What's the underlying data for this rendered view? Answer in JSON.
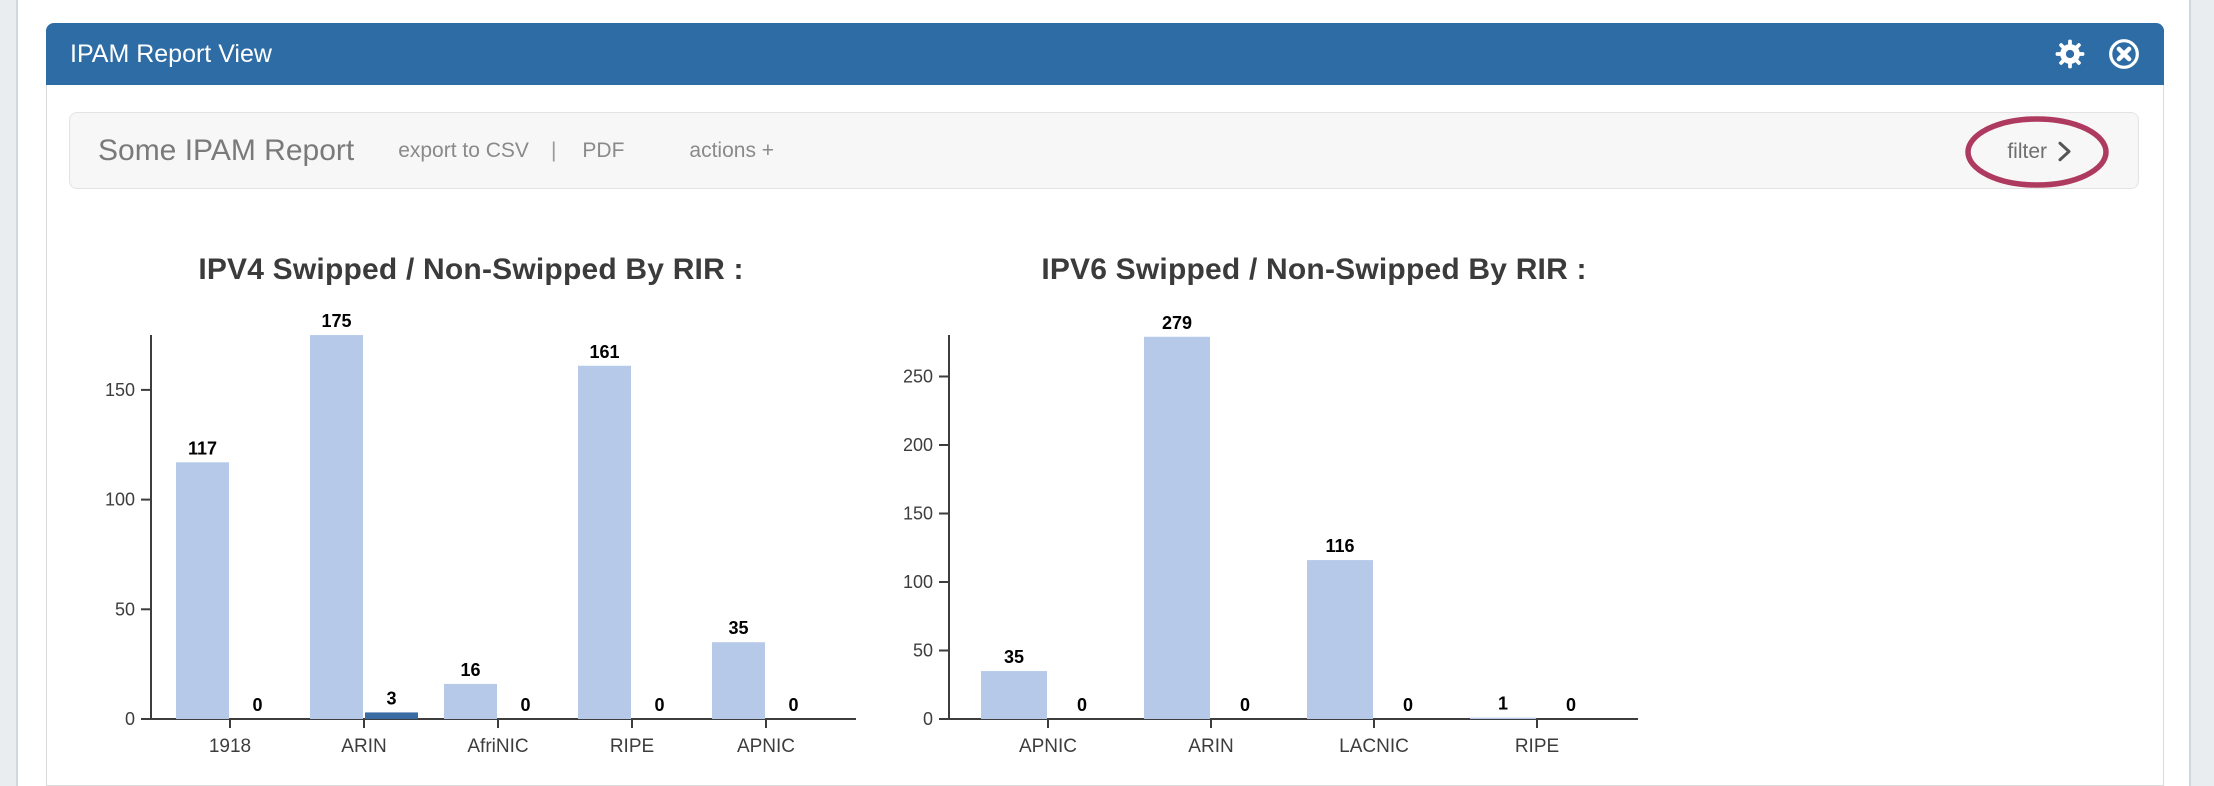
{
  "page": {
    "background": "#e9edf0",
    "accent": "#2e6ca5"
  },
  "panel": {
    "title": "IPAM Report View",
    "header_color": "#2e6ca5",
    "icons": [
      {
        "name": "settings-gear-icon"
      },
      {
        "name": "close-circle-x-icon"
      }
    ]
  },
  "toolbar": {
    "report_title": "Some IPAM Report",
    "export_csv_label": "export to CSV",
    "separator": "|",
    "pdf_label": "PDF",
    "actions_label": "actions +",
    "filter_label": "filter",
    "filter_chevron_icon": "chevron-right",
    "annotation_color": "#ae3a60"
  },
  "chart_data": [
    {
      "type": "bar",
      "title": "IPV4 Swipped / Non-Swipped By RIR :",
      "categories": [
        "1918",
        "ARIN",
        "AfriNIC",
        "RIPE",
        "APNIC"
      ],
      "series": [
        {
          "name": "swipped",
          "color": "#b7c9e8",
          "values": [
            117,
            175,
            16,
            161,
            35
          ]
        },
        {
          "name": "non-swipped",
          "color": "#3a6ca3",
          "values": [
            0,
            3,
            0,
            0,
            0
          ]
        }
      ],
      "yticks": [
        0,
        50,
        100,
        150
      ],
      "ylim": [
        0,
        175
      ],
      "grid": false,
      "legend": "none",
      "bar_value_labels": true,
      "axis_color": "#3d3d3d"
    },
    {
      "type": "bar",
      "title": "IPV6 Swipped / Non-Swipped By RIR :",
      "categories": [
        "APNIC",
        "ARIN",
        "LACNIC",
        "RIPE"
      ],
      "series": [
        {
          "name": "swipped",
          "color": "#b7c9e8",
          "values": [
            35,
            279,
            116,
            1
          ]
        },
        {
          "name": "non-swipped",
          "color": "#3a6ca3",
          "values": [
            0,
            0,
            0,
            0
          ]
        }
      ],
      "yticks": [
        0,
        50,
        100,
        150,
        200,
        250
      ],
      "ylim": [
        0,
        279
      ],
      "grid": false,
      "legend": "none",
      "bar_value_labels": true,
      "axis_color": "#3d3d3d"
    }
  ]
}
